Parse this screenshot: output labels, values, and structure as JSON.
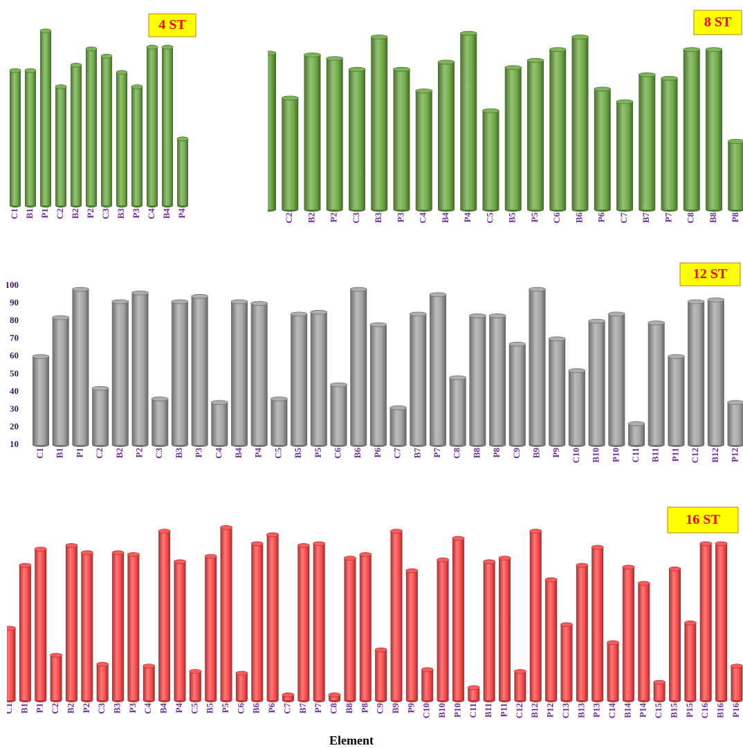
{
  "chart_data": [
    {
      "type": "bar",
      "title": "4 ST",
      "color": "#70ad47",
      "ylim": [
        0,
        100
      ],
      "categories": [
        "C1",
        "B1",
        "P1",
        "C2",
        "B2",
        "P2",
        "C3",
        "B3",
        "P3",
        "C4",
        "B4",
        "P4"
      ],
      "values": [
        75,
        75,
        97,
        66,
        78,
        87,
        83,
        74,
        66,
        88,
        88,
        37
      ]
    },
    {
      "type": "bar",
      "title": "8 ST",
      "color": "#70ad47",
      "ylim": [
        0,
        100
      ],
      "categories": [
        null,
        "C2",
        "B2",
        "P2",
        "C3",
        "B3",
        "P3",
        "C4",
        "B4",
        "P4",
        "C5",
        "B5",
        "P5",
        "C6",
        "B6",
        "P6",
        "C7",
        "B7",
        "P7",
        "C8",
        "B8",
        "P8"
      ],
      "values": [
        87,
        62,
        86,
        84,
        78,
        96,
        78,
        66,
        82,
        98,
        55,
        79,
        83,
        89,
        96,
        67,
        60,
        75,
        73,
        89,
        89,
        38
      ]
    },
    {
      "type": "bar",
      "title": "12 ST",
      "color": "#a5a5a5",
      "ylim": [
        10,
        100
      ],
      "yticks": [
        10,
        20,
        30,
        40,
        50,
        60,
        70,
        80,
        90,
        100
      ],
      "categories": [
        "C1",
        "B1",
        "P1",
        "C2",
        "B2",
        "P2",
        "C3",
        "B3",
        "P3",
        "C4",
        "B4",
        "P4",
        "C5",
        "B5",
        "P5",
        "C6",
        "B6",
        "P6",
        "C7",
        "B7",
        "P7",
        "C8",
        "B8",
        "P8",
        "C9",
        "B9",
        "P9",
        "C10",
        "B10",
        "P10",
        "C11",
        "B11",
        "P11",
        "C12",
        "B12",
        "P12"
      ],
      "values": [
        60,
        82,
        98,
        42,
        91,
        96,
        36,
        91,
        94,
        34,
        91,
        90,
        36,
        84,
        85,
        44,
        98,
        78,
        31,
        84,
        95,
        48,
        83,
        83,
        67,
        98,
        70,
        52,
        80,
        84,
        22,
        79,
        60,
        91,
        92,
        34
      ]
    },
    {
      "type": "bar",
      "title": "16 ST",
      "color": "#ff4b4b",
      "ylim": [
        0,
        100
      ],
      "xlabel": "Element",
      "categories": [
        "C1",
        "B1",
        "P1",
        "C2",
        "B2",
        "P2",
        "C3",
        "B3",
        "P3",
        "C4",
        "B4",
        "P4",
        "C5",
        "B5",
        "P5",
        "C6",
        "B6",
        "P6",
        "C7",
        "B7",
        "P7",
        "C8",
        "B8",
        "P8",
        "C9",
        "B9",
        "P9",
        "C10",
        "B10",
        "P10",
        "C11",
        "B11",
        "P11",
        "C12",
        "B12",
        "P12",
        "C13",
        "B13",
        "P13",
        "C14",
        "B14",
        "P14",
        "C15",
        "B15",
        "P15",
        "C16",
        "B16",
        "P16"
      ],
      "values": [
        40,
        75,
        84,
        25,
        86,
        82,
        20,
        82,
        81,
        19,
        94,
        77,
        16,
        80,
        96,
        15,
        87,
        92,
        3,
        86,
        87,
        3,
        79,
        81,
        28,
        94,
        72,
        17,
        78,
        90,
        7,
        77,
        79,
        16,
        94,
        67,
        42,
        75,
        85,
        32,
        74,
        65,
        10,
        73,
        43,
        87,
        87,
        19
      ]
    }
  ]
}
